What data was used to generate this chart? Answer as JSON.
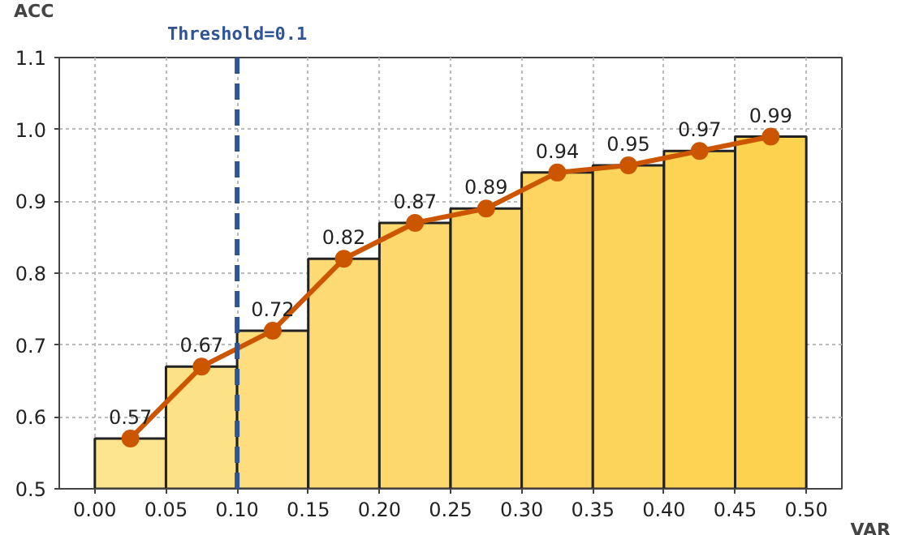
{
  "chart_data": {
    "type": "histogram",
    "xlabel": "VAR",
    "ylabel": "ACC",
    "bins": [
      0.0,
      0.05,
      0.1,
      0.15,
      0.2,
      0.25,
      0.3,
      0.35,
      0.4,
      0.45,
      0.5
    ],
    "values": [
      0.57,
      0.67,
      0.72,
      0.82,
      0.87,
      0.89,
      0.94,
      0.95,
      0.97,
      0.99
    ],
    "colors": [
      "#fde58f",
      "#fde187",
      "#fddd7e",
      "#fdda74",
      "#fdd86c",
      "#fdd766",
      "#fdd560",
      "#fdd45a",
      "#fdd354",
      "#fdd24e"
    ],
    "series": [
      {
        "type": "line",
        "color": "#cc5500",
        "x": [
          0.025,
          0.075,
          0.125,
          0.175,
          0.225,
          0.275,
          0.325,
          0.375,
          0.425,
          0.475
        ],
        "values": [
          0.57,
          0.67,
          0.72,
          0.82,
          0.87,
          0.89,
          0.94,
          0.95,
          0.97,
          0.99
        ],
        "value_labels": [
          "0.57",
          "0.67",
          "0.72",
          "0.82",
          "0.87",
          "0.89",
          "0.94",
          "0.95",
          "0.97",
          "0.99"
        ]
      }
    ],
    "marker": "circle",
    "line_style": "solid",
    "xlim": [
      -0.025,
      0.525
    ],
    "ylim": [
      0.5,
      1.1
    ],
    "xticks": [
      {
        "value": 0.0,
        "label": "0.00"
      },
      0.05,
      {
        "value": 0.1,
        "label": "0.10"
      },
      0.15,
      {
        "value": 0.2,
        "label": "0.20"
      },
      0.25,
      {
        "value": 0.3,
        "label": "0.30"
      },
      0.35,
      {
        "value": 0.4,
        "label": "0.40"
      },
      0.45,
      {
        "value": 0.5,
        "label": "0.50"
      }
    ],
    "yticks": [
      0.5,
      0.6,
      0.7,
      0.8,
      0.9,
      {
        "value": 1.0,
        "label": "1.0"
      },
      1.1
    ],
    "ref_lines": [
      {
        "axis": "x",
        "value": 0.1,
        "label": "Threshold=0.1",
        "color": "#2f5597",
        "line_style": "dashed"
      }
    ],
    "grid": true
  }
}
